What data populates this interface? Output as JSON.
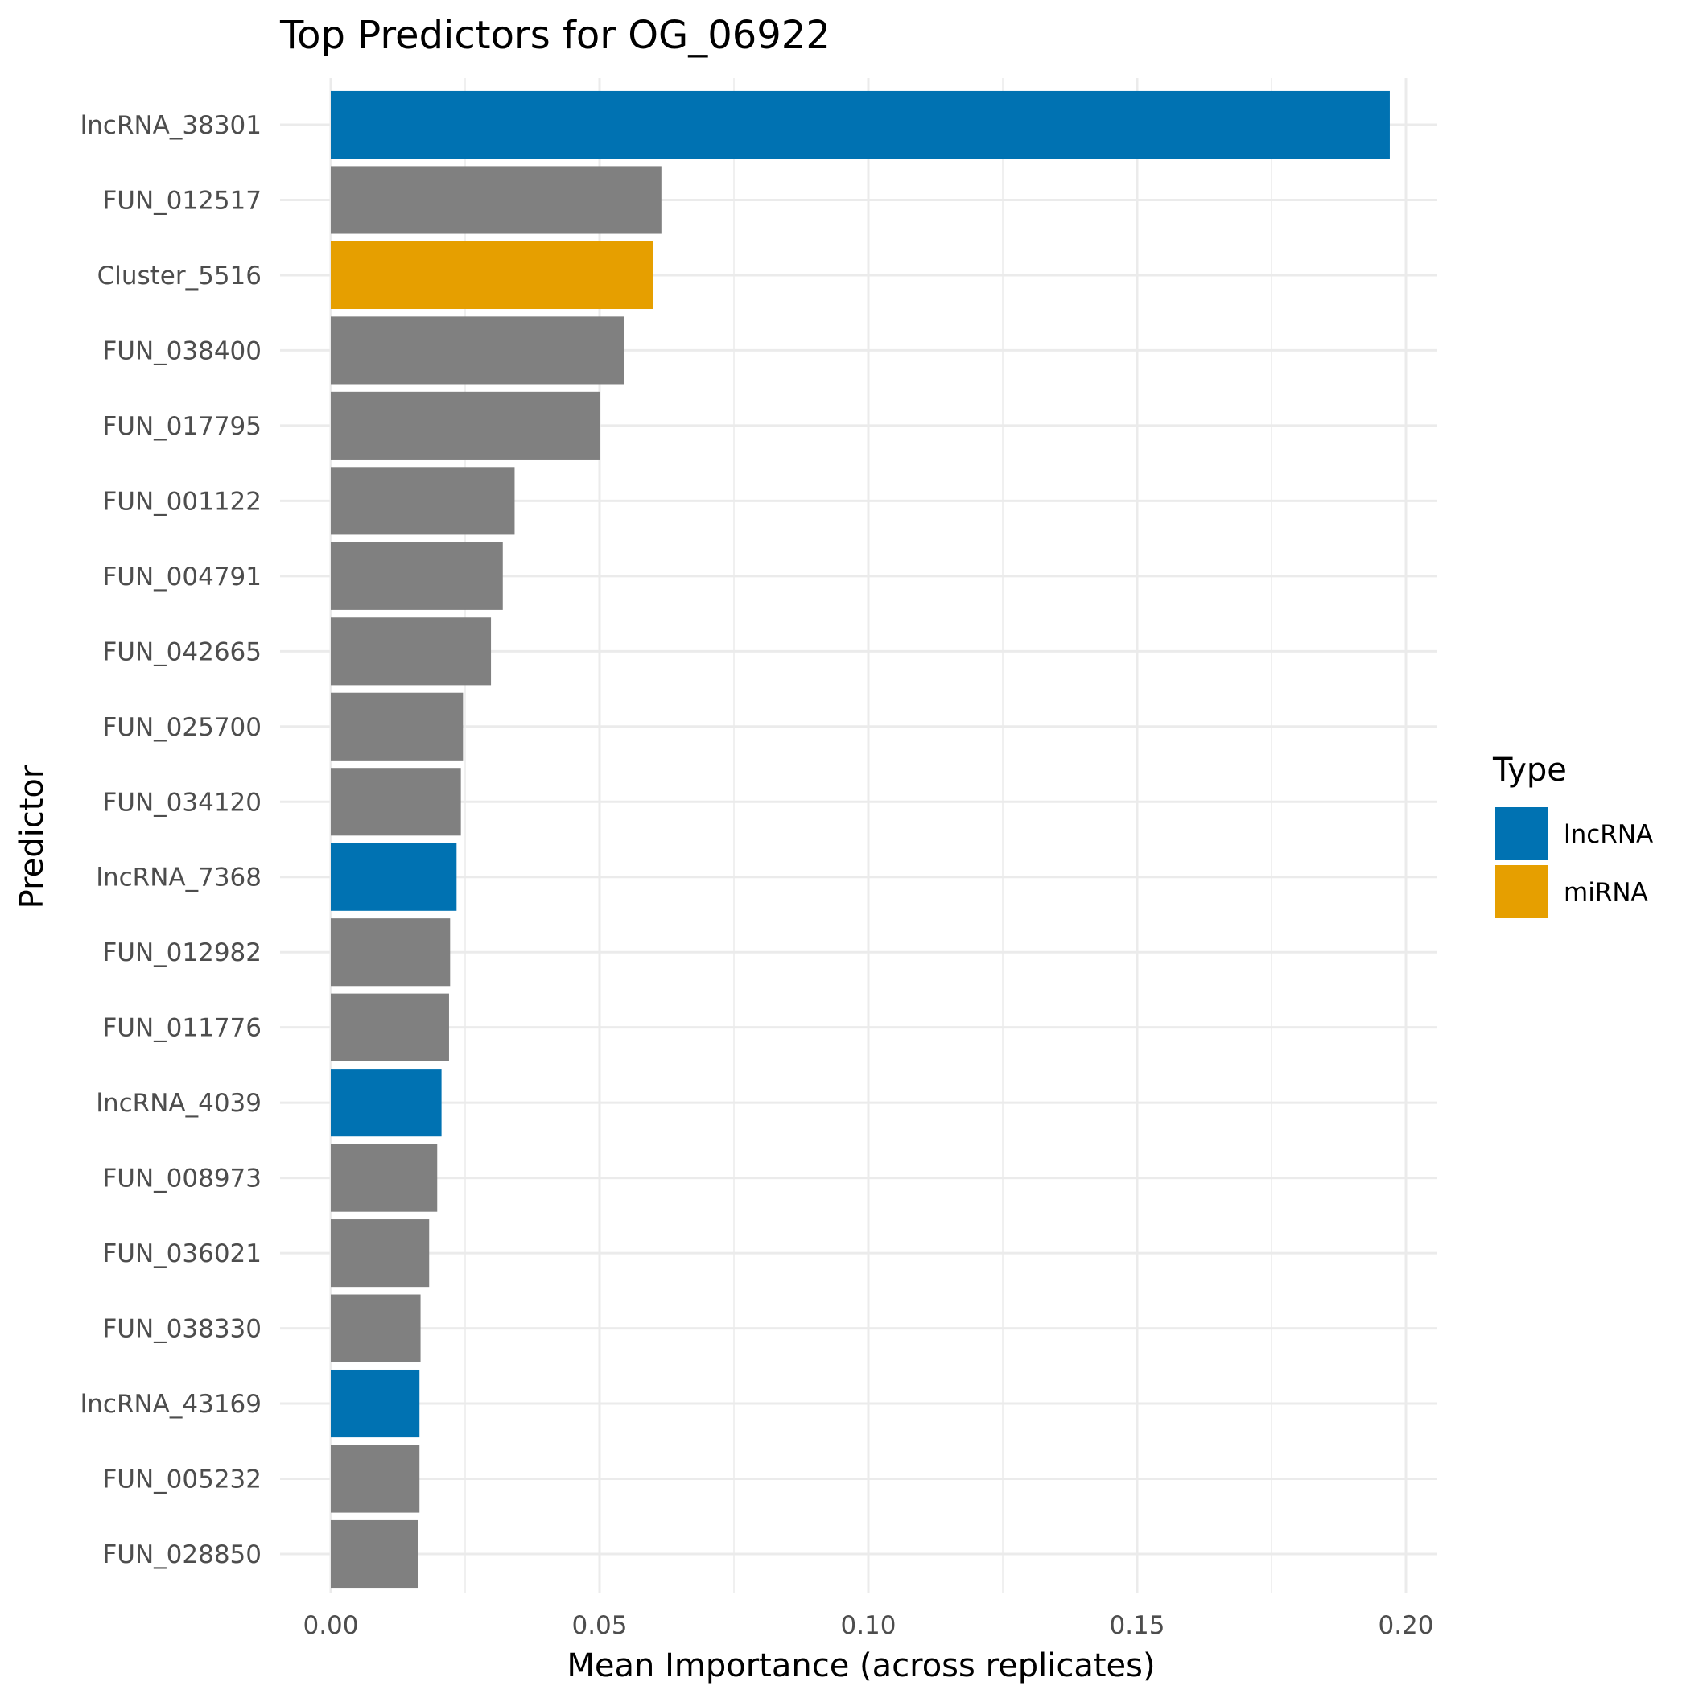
{
  "chart_data": {
    "type": "bar",
    "orientation": "horizontal",
    "title": "Top Predictors for OG_06922",
    "xlabel": "Mean Importance (across replicates)",
    "ylabel": "Predictor",
    "xlim": [
      0,
      0.2
    ],
    "x_ticks": [
      "0.00",
      "0.05",
      "0.10",
      "0.15",
      "0.20"
    ],
    "x_tick_values": [
      0,
      0.05,
      0.1,
      0.15,
      0.2
    ],
    "grid": true,
    "legend": {
      "title": "Type",
      "position": "right",
      "entries": [
        {
          "label": "lncRNA",
          "color": "#0072B2"
        },
        {
          "label": "miRNA",
          "color": "#E69F00"
        }
      ]
    },
    "default_color": "#808080",
    "categories": [
      "lncRNA_38301",
      "FUN_012517",
      "Cluster_5516",
      "FUN_038400",
      "FUN_017795",
      "FUN_001122",
      "FUN_004791",
      "FUN_042665",
      "FUN_025700",
      "FUN_034120",
      "lncRNA_7368",
      "FUN_012982",
      "FUN_011776",
      "lncRNA_4039",
      "FUN_008973",
      "FUN_036021",
      "FUN_038330",
      "lncRNA_43169",
      "FUN_005232",
      "FUN_028850"
    ],
    "values": [
      0.197,
      0.0615,
      0.06,
      0.0545,
      0.05,
      0.0342,
      0.032,
      0.0298,
      0.0246,
      0.0242,
      0.0234,
      0.0222,
      0.022,
      0.0206,
      0.0198,
      0.0183,
      0.0167,
      0.0165,
      0.0165,
      0.0163
    ],
    "types": [
      "lncRNA",
      "other",
      "miRNA",
      "other",
      "other",
      "other",
      "other",
      "other",
      "other",
      "other",
      "lncRNA",
      "other",
      "other",
      "lncRNA",
      "other",
      "other",
      "other",
      "lncRNA",
      "other",
      "other"
    ]
  }
}
